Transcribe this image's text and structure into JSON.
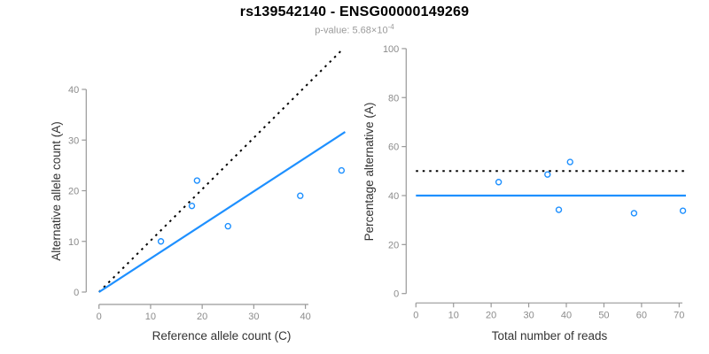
{
  "header": {
    "title": "rs139542140 - ENSG00000149269",
    "pvalue": {
      "label": "p-value:",
      "mantissa": "5.68",
      "multiplier": "×10",
      "exponent": "-4"
    }
  },
  "colors": {
    "accent_blue": "#1E90FF",
    "dashed_black": "#000000",
    "axis_line": "#999999",
    "tick_label": "#8c8c8c",
    "axis_title": "#333333",
    "title_text": "#000000",
    "subtitle_text": "#9a9a9a",
    "background": "#ffffff"
  },
  "chart_data": [
    {
      "type": "scatter",
      "name": "allele-counts",
      "title": "",
      "xlabel": "Reference allele count (C)",
      "ylabel": "Alternative allele count (A)",
      "xlim": [
        0,
        47.5
      ],
      "ylim": [
        0,
        48
      ],
      "xticks": [
        0,
        10,
        20,
        30,
        40
      ],
      "yticks": [
        0,
        10,
        20,
        30,
        40
      ],
      "grid": false,
      "legend": "none",
      "points": [
        {
          "x": 12,
          "y": 10
        },
        {
          "x": 18,
          "y": 17
        },
        {
          "x": 19,
          "y": 22
        },
        {
          "x": 25,
          "y": 13
        },
        {
          "x": 39,
          "y": 19
        },
        {
          "x": 47,
          "y": 24
        }
      ],
      "lines": [
        {
          "name": "expected-50pct-line",
          "style": "dotted",
          "color": "#000000",
          "x1": 0,
          "y1": 0,
          "x2": 47.3,
          "y2": 48
        },
        {
          "name": "fitted-ratio-line",
          "style": "solid",
          "color": "#1E90FF",
          "x1": 0,
          "y1": 0,
          "x2": 47.7,
          "y2": 31.6
        }
      ]
    },
    {
      "type": "scatter",
      "name": "percentage-vs-reads",
      "title": "",
      "xlabel": "Total number of reads",
      "ylabel": "Percentage alternative (A)",
      "xlim": [
        0,
        72
      ],
      "ylim": [
        0,
        100
      ],
      "xticks": [
        0,
        10,
        20,
        30,
        40,
        50,
        60,
        70
      ],
      "yticks": [
        0,
        20,
        40,
        60,
        80,
        100
      ],
      "grid": false,
      "legend": "none",
      "points": [
        {
          "x": 22,
          "y": 45.5
        },
        {
          "x": 35,
          "y": 48.6
        },
        {
          "x": 38,
          "y": 34.2
        },
        {
          "x": 41,
          "y": 53.7
        },
        {
          "x": 58,
          "y": 32.8
        },
        {
          "x": 71,
          "y": 33.8
        }
      ],
      "lines": [
        {
          "name": "expected-50pct-line",
          "style": "dotted",
          "color": "#000000",
          "x1": 0,
          "y1": 50,
          "x2": 71.8,
          "y2": 50
        },
        {
          "name": "fitted-mean-line",
          "style": "solid",
          "color": "#1E90FF",
          "x1": 0,
          "y1": 40,
          "x2": 71.8,
          "y2": 40
        }
      ]
    }
  ]
}
